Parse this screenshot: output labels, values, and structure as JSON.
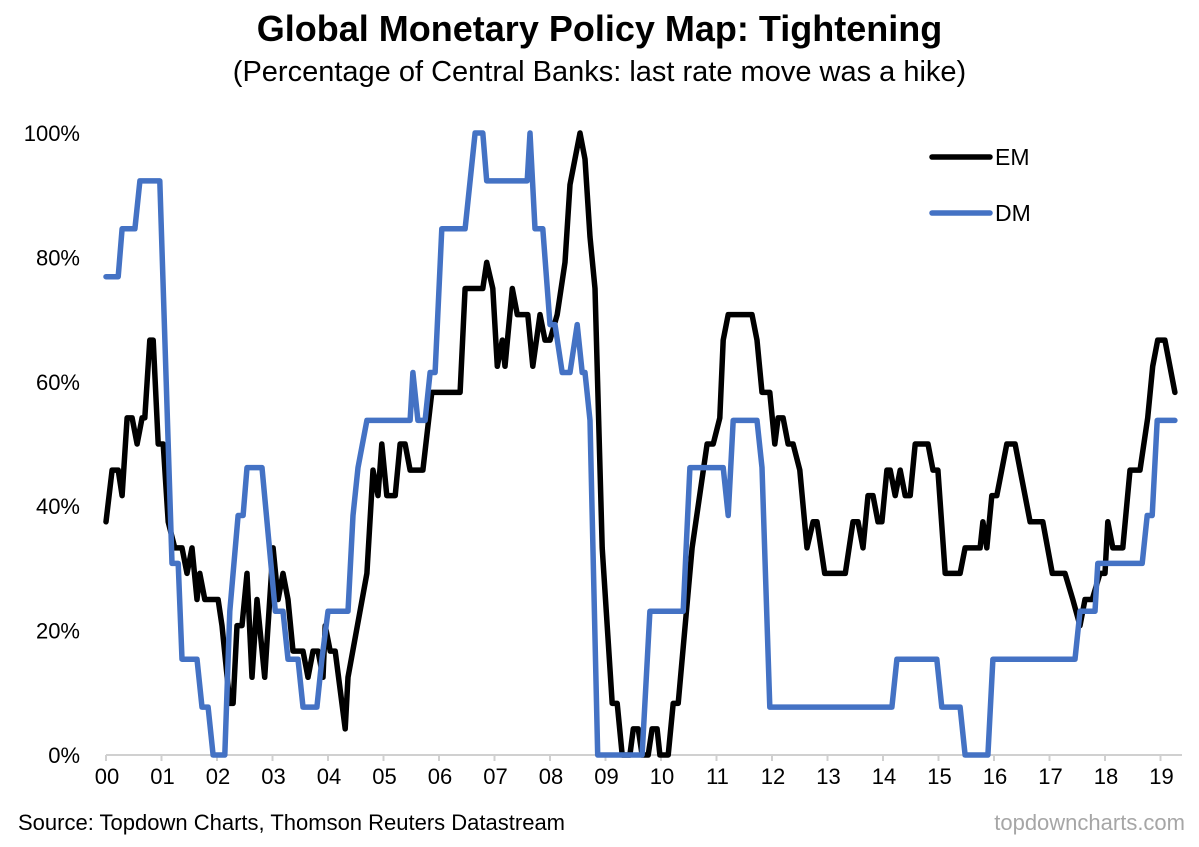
{
  "chart_data": {
    "type": "line",
    "title": "Global Monetary Policy Map: Tightening",
    "subtitle": "(Percentage of Central Banks: last rate move was a hike)",
    "xlabel": "",
    "ylabel": "",
    "xlim": [
      0,
      19.3
    ],
    "ylim": [
      0,
      100
    ],
    "x_ticks": [
      0,
      1,
      2,
      3,
      4,
      5,
      6,
      7,
      8,
      9,
      10,
      11,
      12,
      13,
      14,
      15,
      16,
      17,
      18,
      19
    ],
    "x_tick_labels": [
      "00",
      "01",
      "02",
      "03",
      "04",
      "05",
      "06",
      "07",
      "08",
      "09",
      "10",
      "11",
      "12",
      "13",
      "14",
      "15",
      "16",
      "17",
      "18",
      "19"
    ],
    "y_ticks": [
      0,
      20,
      40,
      60,
      80,
      100
    ],
    "y_tick_labels": [
      "0%",
      "20%",
      "40%",
      "60%",
      "80%",
      "100%"
    ],
    "grid": false,
    "legend_position": "top-right",
    "series": [
      {
        "name": "EM",
        "color": "#000000",
        "points": [
          [
            0,
            37.5
          ],
          [
            0.11,
            45.8
          ],
          [
            0.22,
            45.8
          ],
          [
            0.29,
            41.7
          ],
          [
            0.38,
            54.2
          ],
          [
            0.47,
            54.2
          ],
          [
            0.56,
            50
          ],
          [
            0.65,
            54.2
          ],
          [
            0.7,
            54.2
          ],
          [
            0.79,
            66.7
          ],
          [
            0.85,
            66.7
          ],
          [
            0.94,
            50
          ],
          [
            1.03,
            50
          ],
          [
            1.12,
            37.5
          ],
          [
            1.24,
            33.3
          ],
          [
            1.37,
            33.3
          ],
          [
            1.46,
            29.2
          ],
          [
            1.55,
            33.3
          ],
          [
            1.64,
            25
          ],
          [
            1.69,
            29.2
          ],
          [
            1.78,
            25
          ],
          [
            2.02,
            25
          ],
          [
            2.09,
            20.8
          ],
          [
            2.23,
            8.3
          ],
          [
            2.29,
            8.3
          ],
          [
            2.36,
            20.8
          ],
          [
            2.45,
            20.8
          ],
          [
            2.54,
            29.2
          ],
          [
            2.63,
            12.5
          ],
          [
            2.72,
            25
          ],
          [
            2.86,
            12.5
          ],
          [
            3.01,
            33.3
          ],
          [
            3.1,
            25
          ],
          [
            3.19,
            29.2
          ],
          [
            3.28,
            25
          ],
          [
            3.37,
            16.7
          ],
          [
            3.55,
            16.7
          ],
          [
            3.64,
            12.5
          ],
          [
            3.73,
            16.7
          ],
          [
            3.82,
            16.7
          ],
          [
            3.91,
            12.5
          ],
          [
            3.95,
            20.8
          ],
          [
            4.04,
            16.7
          ],
          [
            4.13,
            16.7
          ],
          [
            4.31,
            4.2
          ],
          [
            4.36,
            12.5
          ],
          [
            4.7,
            29.2
          ],
          [
            4.81,
            45.8
          ],
          [
            4.9,
            41.7
          ],
          [
            4.97,
            50
          ],
          [
            5.06,
            41.7
          ],
          [
            5.21,
            41.7
          ],
          [
            5.3,
            50
          ],
          [
            5.39,
            50
          ],
          [
            5.48,
            45.8
          ],
          [
            5.71,
            45.8
          ],
          [
            5.87,
            58.3
          ],
          [
            6.38,
            58.3
          ],
          [
            6.47,
            75
          ],
          [
            6.79,
            75
          ],
          [
            6.86,
            79.2
          ],
          [
            6.97,
            75
          ],
          [
            7.05,
            62.5
          ],
          [
            7.14,
            66.7
          ],
          [
            7.19,
            62.5
          ],
          [
            7.32,
            75
          ],
          [
            7.41,
            70.8
          ],
          [
            7.6,
            70.8
          ],
          [
            7.69,
            62.5
          ],
          [
            7.82,
            70.8
          ],
          [
            7.91,
            66.7
          ],
          [
            8.0,
            66.7
          ],
          [
            8.13,
            70.8
          ],
          [
            8.27,
            79.2
          ],
          [
            8.36,
            91.7
          ],
          [
            8.54,
            100
          ],
          [
            8.63,
            95.8
          ],
          [
            8.72,
            83.3
          ],
          [
            8.81,
            75
          ],
          [
            8.94,
            33.3
          ],
          [
            9.12,
            8.3
          ],
          [
            9.21,
            8.3
          ],
          [
            9.3,
            0
          ],
          [
            9.44,
            0
          ],
          [
            9.5,
            4.2
          ],
          [
            9.59,
            4.2
          ],
          [
            9.66,
            0
          ],
          [
            9.77,
            0
          ],
          [
            9.84,
            4.2
          ],
          [
            9.93,
            4.2
          ],
          [
            9.98,
            0
          ],
          [
            10.13,
            0
          ],
          [
            10.22,
            8.3
          ],
          [
            10.31,
            8.3
          ],
          [
            10.56,
            33.3
          ],
          [
            10.83,
            50
          ],
          [
            10.94,
            50
          ],
          [
            11.06,
            54.2
          ],
          [
            11.12,
            66.7
          ],
          [
            11.21,
            70.8
          ],
          [
            11.64,
            70.8
          ],
          [
            11.73,
            66.7
          ],
          [
            11.82,
            58.3
          ],
          [
            11.96,
            58.3
          ],
          [
            12.05,
            50
          ],
          [
            12.11,
            54.2
          ],
          [
            12.2,
            54.2
          ],
          [
            12.29,
            50
          ],
          [
            12.38,
            50
          ],
          [
            12.5,
            45.8
          ],
          [
            12.63,
            33.3
          ],
          [
            12.74,
            37.5
          ],
          [
            12.81,
            37.5
          ],
          [
            12.95,
            29.2
          ],
          [
            13.32,
            29.2
          ],
          [
            13.46,
            37.5
          ],
          [
            13.55,
            37.5
          ],
          [
            13.64,
            33.3
          ],
          [
            13.73,
            41.7
          ],
          [
            13.82,
            41.7
          ],
          [
            13.91,
            37.5
          ],
          [
            13.98,
            37.5
          ],
          [
            14.07,
            45.8
          ],
          [
            14.13,
            45.8
          ],
          [
            14.22,
            41.7
          ],
          [
            14.31,
            45.8
          ],
          [
            14.4,
            41.7
          ],
          [
            14.49,
            41.7
          ],
          [
            14.58,
            50
          ],
          [
            14.81,
            50
          ],
          [
            14.9,
            45.8
          ],
          [
            14.99,
            45.8
          ],
          [
            15.12,
            29.2
          ],
          [
            15.39,
            29.2
          ],
          [
            15.48,
            33.3
          ],
          [
            15.75,
            33.3
          ],
          [
            15.8,
            37.5
          ],
          [
            15.87,
            33.3
          ],
          [
            15.96,
            41.7
          ],
          [
            16.05,
            41.7
          ],
          [
            16.23,
            50
          ],
          [
            16.38,
            50
          ],
          [
            16.65,
            37.5
          ],
          [
            16.88,
            37.5
          ],
          [
            17.05,
            29.2
          ],
          [
            17.28,
            29.2
          ],
          [
            17.42,
            25
          ],
          [
            17.55,
            20.8
          ],
          [
            17.64,
            25
          ],
          [
            17.77,
            25
          ],
          [
            17.91,
            29.2
          ],
          [
            18.0,
            29.2
          ],
          [
            18.05,
            37.5
          ],
          [
            18.14,
            33.3
          ],
          [
            18.32,
            33.3
          ],
          [
            18.45,
            45.8
          ],
          [
            18.63,
            45.8
          ],
          [
            18.77,
            54.2
          ],
          [
            18.86,
            62.5
          ],
          [
            18.95,
            66.7
          ],
          [
            19.08,
            66.7
          ],
          [
            19.26,
            58.3
          ]
        ]
      },
      {
        "name": "DM",
        "color": "#4472C4",
        "points": [
          [
            0,
            76.9
          ],
          [
            0.22,
            76.9
          ],
          [
            0.29,
            84.6
          ],
          [
            0.52,
            84.6
          ],
          [
            0.61,
            92.3
          ],
          [
            0.97,
            92.3
          ],
          [
            1.19,
            30.8
          ],
          [
            1.3,
            30.8
          ],
          [
            1.37,
            15.4
          ],
          [
            1.64,
            15.4
          ],
          [
            1.73,
            7.7
          ],
          [
            1.84,
            7.7
          ],
          [
            1.93,
            0
          ],
          [
            2.14,
            0
          ],
          [
            2.23,
            23.1
          ],
          [
            2.38,
            38.5
          ],
          [
            2.47,
            38.5
          ],
          [
            2.54,
            46.2
          ],
          [
            2.81,
            46.2
          ],
          [
            3.05,
            23.1
          ],
          [
            3.19,
            23.1
          ],
          [
            3.28,
            15.4
          ],
          [
            3.46,
            15.4
          ],
          [
            3.55,
            7.7
          ],
          [
            3.8,
            7.7
          ],
          [
            3.89,
            15.4
          ],
          [
            4.0,
            23.1
          ],
          [
            4.36,
            23.1
          ],
          [
            4.45,
            38.5
          ],
          [
            4.54,
            46.2
          ],
          [
            4.7,
            53.8
          ],
          [
            5.48,
            53.8
          ],
          [
            5.53,
            61.5
          ],
          [
            5.62,
            53.8
          ],
          [
            5.75,
            53.8
          ],
          [
            5.84,
            61.5
          ],
          [
            5.93,
            61.5
          ],
          [
            6.05,
            84.6
          ],
          [
            6.47,
            84.6
          ],
          [
            6.65,
            100
          ],
          [
            6.79,
            100
          ],
          [
            6.86,
            92.3
          ],
          [
            7.59,
            92.3
          ],
          [
            7.64,
            100
          ],
          [
            7.73,
            84.6
          ],
          [
            7.87,
            84.6
          ],
          [
            8.0,
            69.2
          ],
          [
            8.09,
            69.2
          ],
          [
            8.22,
            61.5
          ],
          [
            8.36,
            61.5
          ],
          [
            8.49,
            69.2
          ],
          [
            8.58,
            61.5
          ],
          [
            8.63,
            61.5
          ],
          [
            8.72,
            53.8
          ],
          [
            8.86,
            0
          ],
          [
            9.66,
            0
          ],
          [
            9.8,
            23.1
          ],
          [
            10.4,
            23.1
          ],
          [
            10.52,
            46.2
          ],
          [
            11.12,
            46.2
          ],
          [
            11.21,
            38.5
          ],
          [
            11.3,
            53.8
          ],
          [
            11.73,
            53.8
          ],
          [
            11.82,
            46.2
          ],
          [
            11.96,
            7.7
          ],
          [
            14.16,
            7.7
          ],
          [
            14.25,
            15.4
          ],
          [
            14.97,
            15.4
          ],
          [
            15.06,
            7.7
          ],
          [
            15.39,
            7.7
          ],
          [
            15.48,
            0
          ],
          [
            15.89,
            0
          ],
          [
            15.98,
            15.4
          ],
          [
            17.46,
            15.4
          ],
          [
            17.55,
            23.1
          ],
          [
            17.82,
            23.1
          ],
          [
            17.87,
            30.8
          ],
          [
            18.67,
            30.8
          ],
          [
            18.76,
            38.5
          ],
          [
            18.85,
            38.5
          ],
          [
            18.94,
            53.8
          ],
          [
            19.26,
            53.8
          ]
        ]
      }
    ]
  },
  "footer": {
    "source": "Source: Topdown Charts, Thomson Reuters Datastream",
    "brand": "topdowncharts.com"
  }
}
